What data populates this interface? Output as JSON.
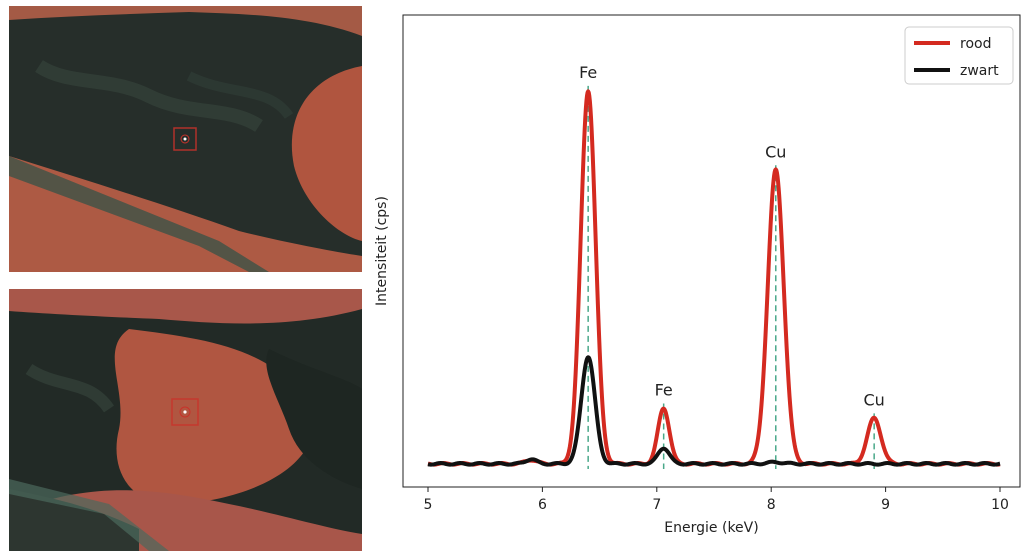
{
  "colors": {
    "rood": "#d42a20",
    "zwart": "#111111",
    "marker": "#4aa88a",
    "paint_dark": "#242c28",
    "paint_red": "#b0553f"
  },
  "photos": [
    {
      "name": "photo-top",
      "description_icon": "crosshair-icon"
    },
    {
      "name": "photo-bottom",
      "description_icon": "crosshair-icon"
    }
  ],
  "chart_data": {
    "type": "line",
    "title": "",
    "xlabel": "Energie (keV)",
    "ylabel": "Intensiteit (cps)",
    "xlim": [
      5,
      10
    ],
    "xticks": [
      "5",
      "6",
      "7",
      "8",
      "9",
      "10"
    ],
    "ylim": [
      0,
      1.0
    ],
    "y_ticks_shown": false,
    "grid": false,
    "legend_position": "top-right",
    "series": [
      {
        "name": "rood",
        "color": "#d42a20",
        "baseline": 0.008,
        "peaks": [
          {
            "x": 5.9,
            "height": 0.01,
            "sigma": 0.05
          },
          {
            "x": 6.4,
            "height": 0.94,
            "sigma": 0.065
          },
          {
            "x": 7.06,
            "height": 0.14,
            "sigma": 0.05
          },
          {
            "x": 8.04,
            "height": 0.74,
            "sigma": 0.07
          },
          {
            "x": 8.9,
            "height": 0.115,
            "sigma": 0.06
          }
        ]
      },
      {
        "name": "zwart",
        "color": "#111111",
        "baseline": 0.008,
        "peaks": [
          {
            "x": 5.9,
            "height": 0.012,
            "sigma": 0.045
          },
          {
            "x": 6.4,
            "height": 0.27,
            "sigma": 0.06
          },
          {
            "x": 7.06,
            "height": 0.04,
            "sigma": 0.05
          },
          {
            "x": 8.04,
            "height": 0.004,
            "sigma": 0.07
          }
        ]
      }
    ],
    "markers": [
      {
        "label": "Fe",
        "x": 6.4,
        "y": 0.96
      },
      {
        "label": "Fe",
        "x": 7.06,
        "y": 0.16
      },
      {
        "label": "Cu",
        "x": 8.04,
        "y": 0.76
      },
      {
        "label": "Cu",
        "x": 8.9,
        "y": 0.135
      }
    ]
  }
}
